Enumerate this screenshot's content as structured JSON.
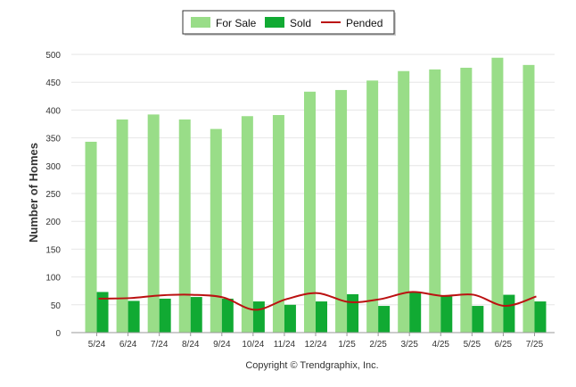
{
  "chart_data": {
    "type": "bar",
    "ylabel": "Number of Homes",
    "xlabel": "",
    "ylim": [
      0,
      500
    ],
    "y_ticks": [
      0,
      50,
      100,
      150,
      200,
      250,
      300,
      350,
      400,
      450,
      500
    ],
    "categories": [
      "5/24",
      "6/24",
      "7/24",
      "8/24",
      "9/24",
      "10/24",
      "11/24",
      "12/24",
      "1/25",
      "2/25",
      "3/25",
      "4/25",
      "5/25",
      "6/25",
      "7/25"
    ],
    "series": [
      {
        "name": "For Sale",
        "type": "bar",
        "color": "#99dd88",
        "values": [
          343,
          383,
          392,
          383,
          366,
          389,
          391,
          433,
          436,
          453,
          470,
          473,
          476,
          494,
          481
        ]
      },
      {
        "name": "Sold",
        "type": "bar",
        "color": "#11aa33",
        "values": [
          73,
          57,
          61,
          64,
          61,
          56,
          50,
          56,
          69,
          48,
          73,
          65,
          48,
          68,
          56
        ]
      },
      {
        "name": "Pended",
        "type": "line",
        "color": "#bb1111",
        "values": [
          61,
          62,
          67,
          68,
          63,
          41,
          60,
          71,
          55,
          60,
          73,
          66,
          68,
          48,
          65
        ]
      }
    ],
    "legend_position": "top-center",
    "grid": true
  },
  "credit": "Copyright © Trendgraphix, Inc."
}
